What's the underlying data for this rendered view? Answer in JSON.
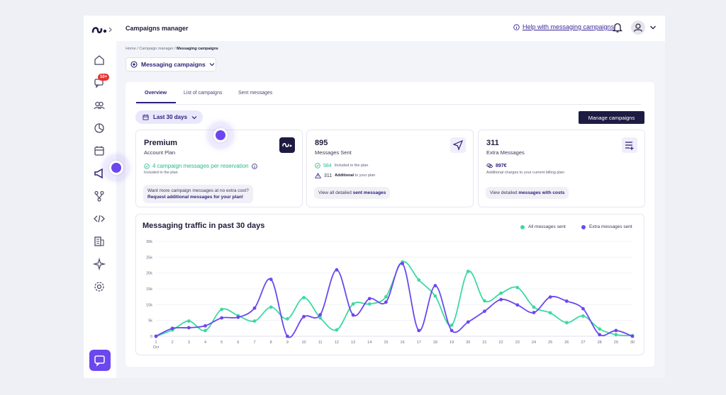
{
  "topbar": {
    "title": "Campaigns manager",
    "help_link": "Help with messaging campaigns"
  },
  "sidebar": {
    "items": [
      {
        "name": "home-icon"
      },
      {
        "name": "chat-bubbles-icon",
        "badge": "10+"
      },
      {
        "name": "users-icon"
      },
      {
        "name": "pie-chart-icon"
      },
      {
        "name": "calendar-icon"
      },
      {
        "name": "megaphone-icon"
      },
      {
        "name": "integration-icon"
      },
      {
        "name": "code-icon"
      },
      {
        "name": "building-icon"
      },
      {
        "name": "sparkles-icon"
      },
      {
        "name": "gear-icon"
      }
    ]
  },
  "breadcrumb": {
    "home": "Home",
    "sep": "/",
    "level1": "Campaign manager",
    "current": "Messaging campaigns"
  },
  "campaign_select": {
    "label": "Messaging campaigns"
  },
  "tabs": [
    "Overview",
    "List of campaigns",
    "Sent messages"
  ],
  "date_filter": "Last 30 days",
  "manage_button": "Manage campaigns",
  "cards": {
    "plan": {
      "title": "Premium",
      "subtitle": "Account Plan",
      "feature": "4 campaign messages per reservation",
      "feature_note": "Included in the plan",
      "cta_line1": "Want more campaign messages at no extra cost?",
      "cta_line2": "Request additional messages for your plan!"
    },
    "sent": {
      "value": "895",
      "label": "Messages Sent",
      "included_value": "584",
      "included_text": "Included in the plan",
      "additional_value": "311",
      "additional_bold": "Additional",
      "additional_text": "to your plan",
      "link_prefix": "View all detailed",
      "link_bold": "sent messages"
    },
    "extra": {
      "value": "311",
      "label": "Extra Messages",
      "charge": "897€",
      "charge_note": "Additional charges to your current billing plan",
      "link_prefix": "View detailed",
      "link_bold": "messages with costs"
    }
  },
  "colors": {
    "accent": "#6c47ef",
    "green": "#3ed9a3",
    "navy": "#1e1b43"
  },
  "chart_data": {
    "type": "line",
    "title": "Messaging traffic in past 30 days",
    "x": [
      1,
      2,
      3,
      4,
      5,
      6,
      7,
      8,
      9,
      10,
      11,
      12,
      13,
      14,
      15,
      16,
      17,
      18,
      19,
      20,
      21,
      22,
      23,
      24,
      25,
      26,
      27,
      28,
      29,
      30
    ],
    "x_sublabel_first": "Oct",
    "ylim": [
      0,
      30000
    ],
    "yticks": [
      "0",
      "5k",
      "10k",
      "15k",
      "20k",
      "25k",
      "30k"
    ],
    "series": [
      {
        "name": "All messages sent",
        "color": "#3ed9a3",
        "values": [
          0,
          2000,
          4800,
          1800,
          8500,
          6500,
          4800,
          9200,
          5500,
          12200,
          5800,
          2000,
          10200,
          10200,
          12500,
          23500,
          17800,
          12700,
          3500,
          20500,
          11200,
          13600,
          15400,
          9200,
          7400,
          4300,
          6400,
          2300,
          500,
          200
        ]
      },
      {
        "name": "Extra messages sent",
        "color": "#6c47ef",
        "values": [
          0,
          2500,
          2700,
          3300,
          5800,
          6000,
          8900,
          18000,
          0,
          6200,
          6800,
          21000,
          6700,
          11900,
          10800,
          23000,
          1800,
          16000,
          1800,
          4500,
          7900,
          11600,
          9900,
          7500,
          12400,
          11100,
          8700,
          500,
          1800,
          0
        ]
      }
    ]
  }
}
